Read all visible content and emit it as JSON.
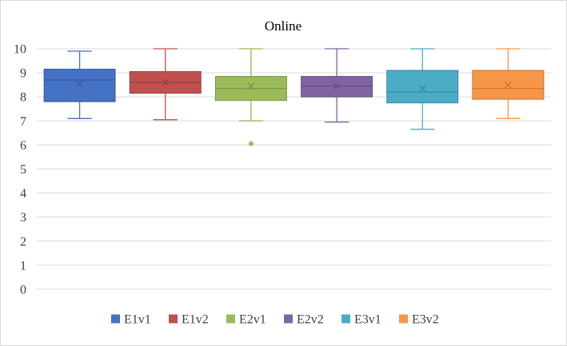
{
  "chart_data": {
    "type": "box",
    "title": "Online",
    "xlabel": "",
    "ylabel": "",
    "ylim": [
      0,
      10
    ],
    "yticks": [
      "0",
      "1",
      "2",
      "3",
      "4",
      "5",
      "6",
      "7",
      "8",
      "9",
      "10"
    ],
    "grid": true,
    "legend_position": "bottom",
    "series": [
      {
        "name": "E1v1",
        "color": "#4472C4",
        "min": 7.1,
        "q1": 7.8,
        "median": 8.7,
        "q3": 9.15,
        "max": 9.9,
        "mean": 8.55,
        "outliers": []
      },
      {
        "name": "E1v2",
        "color": "#C0504D",
        "min": 7.05,
        "q1": 8.15,
        "median": 8.6,
        "q3": 9.05,
        "max": 10.0,
        "mean": 8.6,
        "outliers": []
      },
      {
        "name": "E2v1",
        "color": "#9BBB59",
        "min": 7.0,
        "q1": 7.85,
        "median": 8.35,
        "q3": 8.85,
        "max": 10.0,
        "mean": 8.45,
        "outliers": [
          6.05
        ]
      },
      {
        "name": "E2v2",
        "color": "#8064A2",
        "min": 6.95,
        "q1": 8.0,
        "median": 8.45,
        "q3": 8.85,
        "max": 10.0,
        "mean": 8.45,
        "outliers": []
      },
      {
        "name": "E3v1",
        "color": "#4BACC6",
        "min": 6.65,
        "q1": 7.75,
        "median": 8.2,
        "q3": 9.1,
        "max": 10.0,
        "mean": 8.35,
        "outliers": []
      },
      {
        "name": "E3v2",
        "color": "#F79646",
        "min": 7.1,
        "q1": 7.9,
        "median": 8.35,
        "q3": 9.1,
        "max": 10.0,
        "mean": 8.5,
        "outliers": []
      }
    ]
  }
}
